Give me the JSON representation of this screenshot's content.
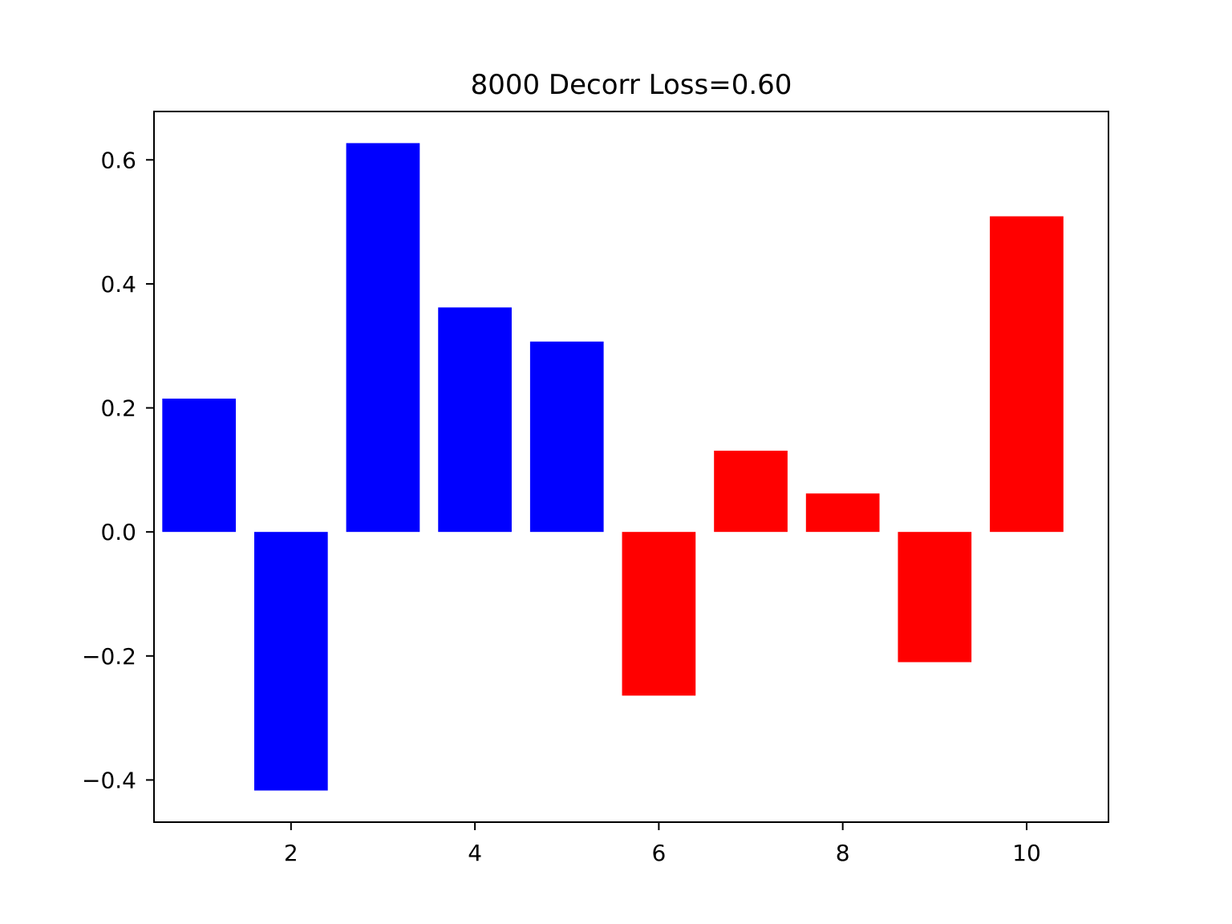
{
  "chart_data": {
    "type": "bar",
    "title": "8000 Decorr Loss=0.60",
    "xlabel": "",
    "ylabel": "",
    "x": [
      1,
      2,
      3,
      4,
      5,
      6,
      7,
      8,
      9,
      10
    ],
    "values": [
      0.215,
      -0.417,
      0.627,
      0.362,
      0.307,
      -0.264,
      0.131,
      0.062,
      -0.21,
      0.509
    ],
    "bar_colors": [
      "#0000ff",
      "#0000ff",
      "#0000ff",
      "#0000ff",
      "#0000ff",
      "#ff0000",
      "#ff0000",
      "#ff0000",
      "#ff0000",
      "#ff0000"
    ],
    "xlim": [
      0.51,
      10.89
    ],
    "ylim": [
      -0.468,
      0.678
    ],
    "xticks": [
      2,
      4,
      6,
      8,
      10
    ],
    "xtick_labels": [
      "2",
      "4",
      "6",
      "8",
      "10"
    ],
    "yticks": [
      -0.4,
      -0.2,
      0.0,
      0.2,
      0.4,
      0.6
    ],
    "ytick_labels": [
      "−0.4",
      "−0.2",
      "0.0",
      "0.2",
      "0.4",
      "0.6"
    ],
    "grid": false,
    "legend": "none"
  }
}
